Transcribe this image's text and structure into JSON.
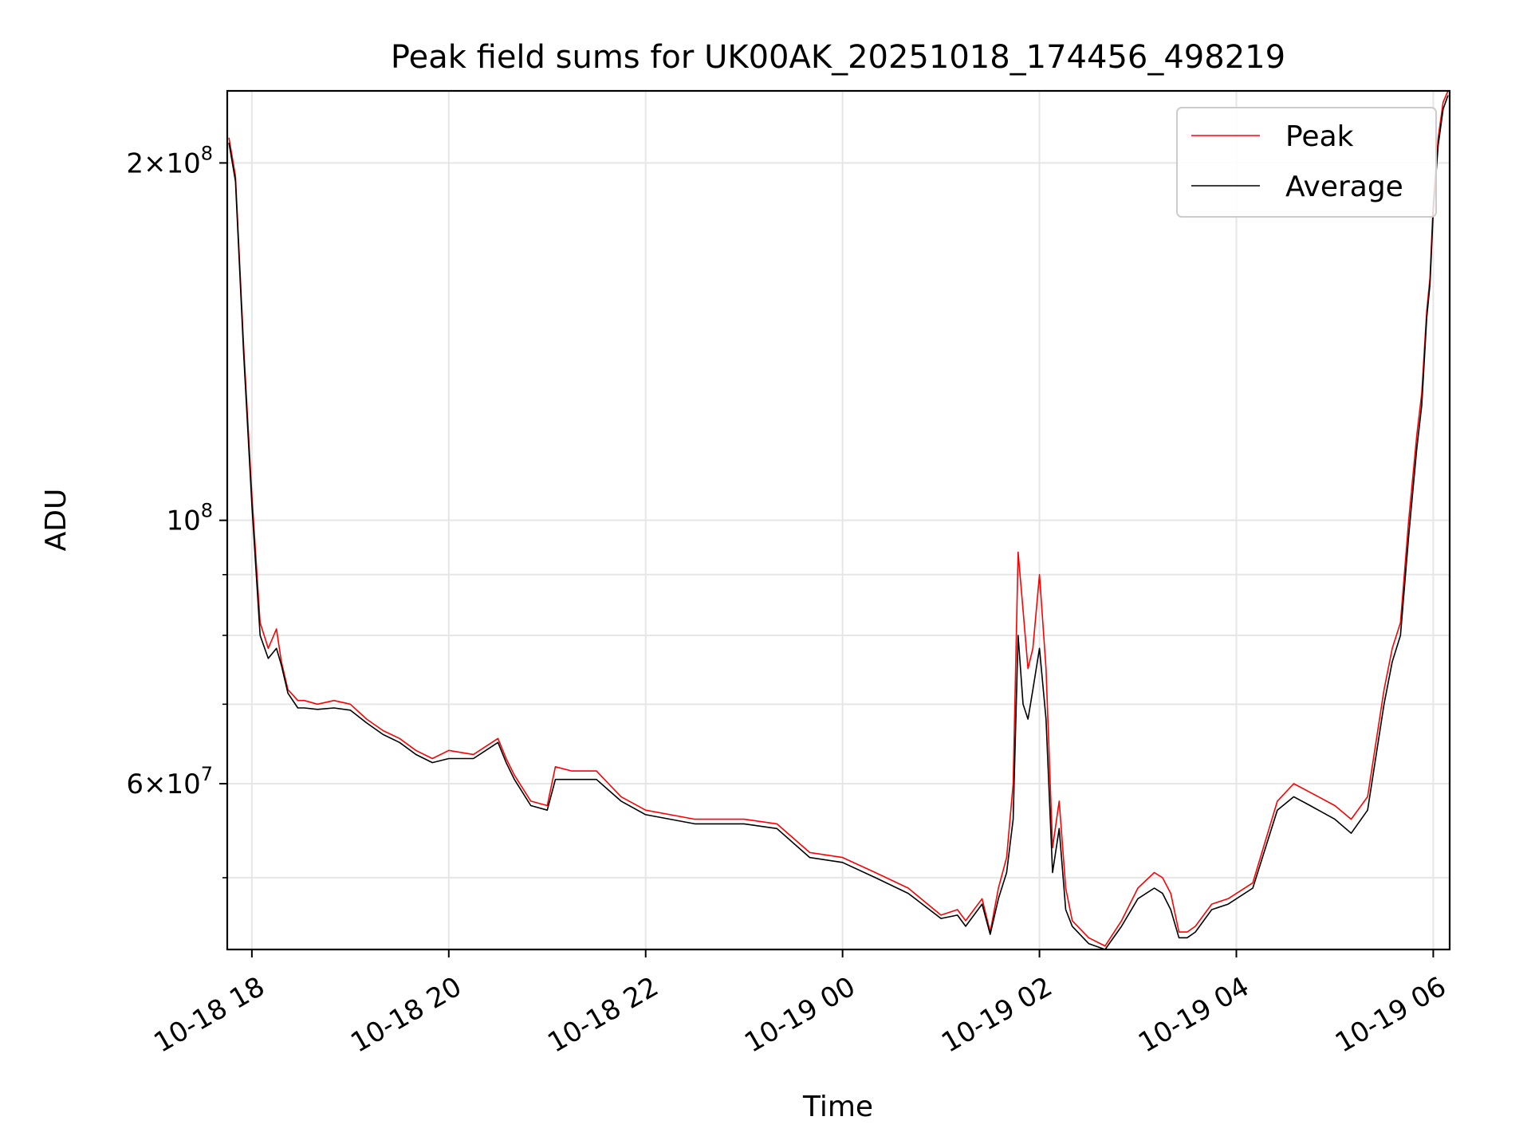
{
  "chart_data": {
    "type": "line",
    "title": "Peak field sums for UK00AK_20251018_174456_498219",
    "xlabel": "Time",
    "ylabel": "ADU",
    "yscale": "log",
    "ylim": [
      43500000,
      230000000
    ],
    "xlim": [
      "2025-10-18 17:45",
      "2025-10-19 06:10"
    ],
    "x_tick_labels": [
      "10-18 18",
      "10-18 20",
      "10-18 22",
      "10-19 00",
      "10-19 02",
      "10-19 04",
      "10-19 06"
    ],
    "x_ticks": [
      "2025-10-18 18:00",
      "2025-10-18 20:00",
      "2025-10-18 22:00",
      "2025-10-19 00:00",
      "2025-10-19 02:00",
      "2025-10-19 04:00",
      "2025-10-19 06:00"
    ],
    "y_ticks": [
      {
        "value": 200000000,
        "mantissa": "2",
        "exp": "8"
      },
      {
        "value": 100000000,
        "mantissa": "",
        "exp": "8"
      },
      {
        "value": 60000000,
        "mantissa": "6",
        "exp": "7"
      }
    ],
    "y_minor_ticks": [
      50000000,
      70000000,
      80000000,
      90000000
    ],
    "grid": true,
    "legend_position": "top-right",
    "series": [
      {
        "name": "Peak",
        "color": "#ff0000",
        "x": [
          "2025-10-18 17:46",
          "2025-10-18 17:50",
          "2025-10-18 17:55",
          "2025-10-18 18:00",
          "2025-10-18 18:05",
          "2025-10-18 18:10",
          "2025-10-18 18:15",
          "2025-10-18 18:18",
          "2025-10-18 18:22",
          "2025-10-18 18:28",
          "2025-10-18 18:32",
          "2025-10-18 18:40",
          "2025-10-18 18:50",
          "2025-10-18 19:00",
          "2025-10-18 19:10",
          "2025-10-18 19:20",
          "2025-10-18 19:30",
          "2025-10-18 19:40",
          "2025-10-18 19:50",
          "2025-10-18 20:00",
          "2025-10-18 20:15",
          "2025-10-18 20:30",
          "2025-10-18 20:35",
          "2025-10-18 20:40",
          "2025-10-18 20:50",
          "2025-10-18 21:00",
          "2025-10-18 21:05",
          "2025-10-18 21:15",
          "2025-10-18 21:30",
          "2025-10-18 21:45",
          "2025-10-18 22:00",
          "2025-10-18 22:30",
          "2025-10-18 23:00",
          "2025-10-18 23:20",
          "2025-10-18 23:40",
          "2025-10-19 00:00",
          "2025-10-19 00:20",
          "2025-10-19 00:40",
          "2025-10-19 01:00",
          "2025-10-19 01:10",
          "2025-10-19 01:15",
          "2025-10-19 01:25",
          "2025-10-19 01:30",
          "2025-10-19 01:35",
          "2025-10-19 01:40",
          "2025-10-19 01:44",
          "2025-10-19 01:47",
          "2025-10-19 01:50",
          "2025-10-19 01:53",
          "2025-10-19 01:56",
          "2025-10-19 02:00",
          "2025-10-19 02:04",
          "2025-10-19 02:08",
          "2025-10-19 02:12",
          "2025-10-19 02:16",
          "2025-10-19 02:20",
          "2025-10-19 02:30",
          "2025-10-19 02:40",
          "2025-10-19 02:50",
          "2025-10-19 03:00",
          "2025-10-19 03:10",
          "2025-10-19 03:15",
          "2025-10-19 03:20",
          "2025-10-19 03:25",
          "2025-10-19 03:30",
          "2025-10-19 03:35",
          "2025-10-19 03:45",
          "2025-10-19 03:55",
          "2025-10-19 04:10",
          "2025-10-19 04:25",
          "2025-10-19 04:35",
          "2025-10-19 04:45",
          "2025-10-19 05:00",
          "2025-10-19 05:10",
          "2025-10-19 05:20",
          "2025-10-19 05:30",
          "2025-10-19 05:35",
          "2025-10-19 05:40",
          "2025-10-19 05:45",
          "2025-10-19 05:50",
          "2025-10-19 05:53",
          "2025-10-19 05:56",
          "2025-10-19 05:58",
          "2025-10-19 06:00",
          "2025-10-19 06:03",
          "2025-10-19 06:06",
          "2025-10-19 06:09"
        ],
        "y": [
          210000000,
          195000000,
          140000000,
          105000000,
          82000000,
          78000000,
          81000000,
          76000000,
          72000000,
          70500000,
          70500000,
          70000000,
          70500000,
          70000000,
          68000000,
          66500000,
          65500000,
          64000000,
          63000000,
          64000000,
          63500000,
          65500000,
          63000000,
          61000000,
          58000000,
          57500000,
          62000000,
          61500000,
          61500000,
          58500000,
          57000000,
          56000000,
          56000000,
          55500000,
          52500000,
          52000000,
          50500000,
          49000000,
          46500000,
          47000000,
          46000000,
          48000000,
          45000000,
          49000000,
          52000000,
          60000000,
          94000000,
          84000000,
          75000000,
          78000000,
          90000000,
          75000000,
          53000000,
          58000000,
          49000000,
          46000000,
          44500000,
          43800000,
          46000000,
          49000000,
          50500000,
          50000000,
          48500000,
          45000000,
          45000000,
          45500000,
          47500000,
          48000000,
          49500000,
          58000000,
          60000000,
          59000000,
          57500000,
          56000000,
          58500000,
          72000000,
          78000000,
          82000000,
          100000000,
          118000000,
          128000000,
          150000000,
          160000000,
          185000000,
          210000000,
          225000000,
          230000000
        ]
      },
      {
        "name": "Average",
        "color": "#000000",
        "x": [
          "2025-10-18 17:46",
          "2025-10-18 17:50",
          "2025-10-18 17:55",
          "2025-10-18 18:00",
          "2025-10-18 18:05",
          "2025-10-18 18:10",
          "2025-10-18 18:15",
          "2025-10-18 18:18",
          "2025-10-18 18:22",
          "2025-10-18 18:28",
          "2025-10-18 18:32",
          "2025-10-18 18:40",
          "2025-10-18 18:50",
          "2025-10-18 19:00",
          "2025-10-18 19:10",
          "2025-10-18 19:20",
          "2025-10-18 19:30",
          "2025-10-18 19:40",
          "2025-10-18 19:50",
          "2025-10-18 20:00",
          "2025-10-18 20:15",
          "2025-10-18 20:30",
          "2025-10-18 20:35",
          "2025-10-18 20:40",
          "2025-10-18 20:50",
          "2025-10-18 21:00",
          "2025-10-18 21:05",
          "2025-10-18 21:15",
          "2025-10-18 21:30",
          "2025-10-18 21:45",
          "2025-10-18 22:00",
          "2025-10-18 22:30",
          "2025-10-18 23:00",
          "2025-10-18 23:20",
          "2025-10-18 23:40",
          "2025-10-19 00:00",
          "2025-10-19 00:20",
          "2025-10-19 00:40",
          "2025-10-19 01:00",
          "2025-10-19 01:10",
          "2025-10-19 01:15",
          "2025-10-19 01:25",
          "2025-10-19 01:30",
          "2025-10-19 01:35",
          "2025-10-19 01:40",
          "2025-10-19 01:44",
          "2025-10-19 01:47",
          "2025-10-19 01:50",
          "2025-10-19 01:53",
          "2025-10-19 01:56",
          "2025-10-19 02:00",
          "2025-10-19 02:04",
          "2025-10-19 02:08",
          "2025-10-19 02:12",
          "2025-10-19 02:16",
          "2025-10-19 02:20",
          "2025-10-19 02:30",
          "2025-10-19 02:40",
          "2025-10-19 02:50",
          "2025-10-19 03:00",
          "2025-10-19 03:10",
          "2025-10-19 03:15",
          "2025-10-19 03:20",
          "2025-10-19 03:25",
          "2025-10-19 03:30",
          "2025-10-19 03:35",
          "2025-10-19 03:45",
          "2025-10-19 03:55",
          "2025-10-19 04:10",
          "2025-10-19 04:25",
          "2025-10-19 04:35",
          "2025-10-19 04:45",
          "2025-10-19 05:00",
          "2025-10-19 05:10",
          "2025-10-19 05:20",
          "2025-10-19 05:30",
          "2025-10-19 05:35",
          "2025-10-19 05:40",
          "2025-10-19 05:45",
          "2025-10-19 05:50",
          "2025-10-19 05:53",
          "2025-10-19 05:56",
          "2025-10-19 05:58",
          "2025-10-19 06:00",
          "2025-10-19 06:03",
          "2025-10-19 06:06",
          "2025-10-19 06:09"
        ],
        "y": [
          208000000,
          193000000,
          138000000,
          103000000,
          80000000,
          76500000,
          78000000,
          75500000,
          71500000,
          69500000,
          69500000,
          69300000,
          69500000,
          69200000,
          67500000,
          66000000,
          65000000,
          63500000,
          62500000,
          63000000,
          63000000,
          65000000,
          62500000,
          60500000,
          57500000,
          57000000,
          60500000,
          60500000,
          60500000,
          58000000,
          56500000,
          55500000,
          55500000,
          55000000,
          52000000,
          51500000,
          50000000,
          48500000,
          46200000,
          46500000,
          45500000,
          47500000,
          44800000,
          48000000,
          50500000,
          56000000,
          80000000,
          70000000,
          68000000,
          72000000,
          78000000,
          68000000,
          50500000,
          55000000,
          47000000,
          45500000,
          44000000,
          43500000,
          45500000,
          48000000,
          49000000,
          48500000,
          47000000,
          44500000,
          44500000,
          45000000,
          47000000,
          47500000,
          49000000,
          57000000,
          58500000,
          57500000,
          56000000,
          54500000,
          57000000,
          70000000,
          76000000,
          80000000,
          97000000,
          115000000,
          125000000,
          148000000,
          158000000,
          182000000,
          207000000,
          222000000,
          228000000
        ]
      }
    ]
  }
}
